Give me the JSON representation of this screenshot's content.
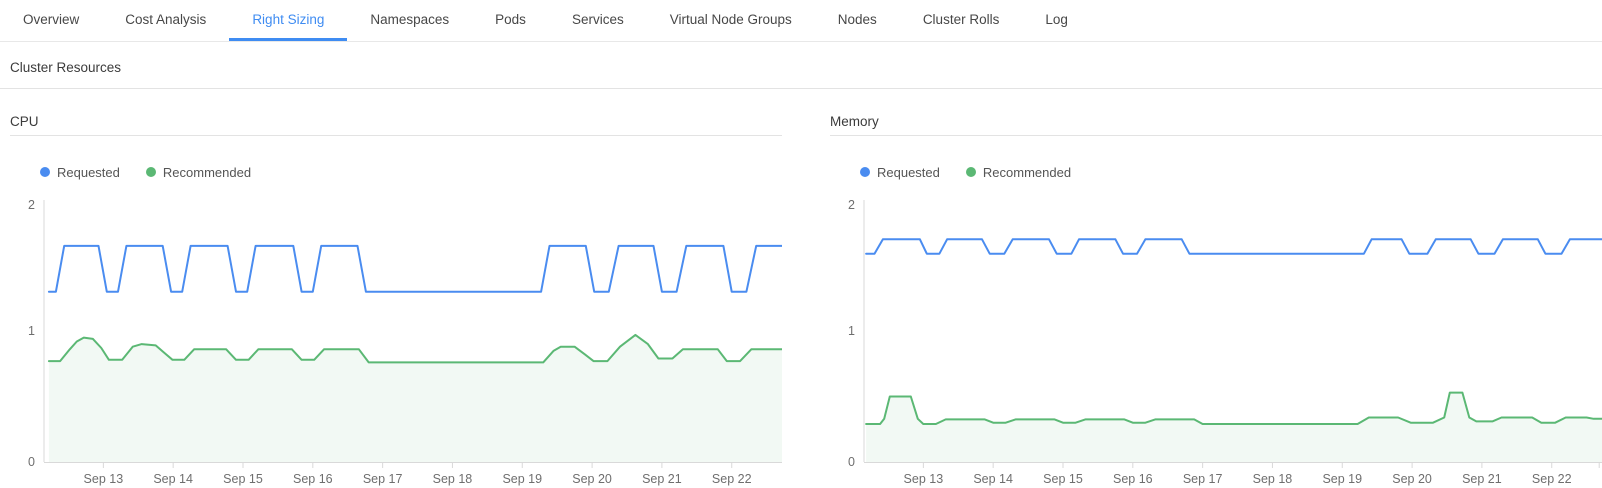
{
  "colors": {
    "accent": "#3f8cf2",
    "requested_blue": "#4a8cf0",
    "recommended_green": "#5bb874",
    "recommended_fill": "rgba(91,184,116,0.08)",
    "axis": "#d9d9d9",
    "tick_text": "#6e6e6e"
  },
  "tabs": {
    "items": [
      {
        "label": "Overview",
        "active": false
      },
      {
        "label": "Cost Analysis",
        "active": false
      },
      {
        "label": "Right Sizing",
        "active": true
      },
      {
        "label": "Namespaces",
        "active": false
      },
      {
        "label": "Pods",
        "active": false
      },
      {
        "label": "Services",
        "active": false
      },
      {
        "label": "Virtual Node Groups",
        "active": false
      },
      {
        "label": "Nodes",
        "active": false
      },
      {
        "label": "Cluster Rolls",
        "active": false
      },
      {
        "label": "Log",
        "active": false
      }
    ]
  },
  "section": {
    "title": "Cluster Resources"
  },
  "chart_data": [
    {
      "type": "line",
      "title": "CPU",
      "xlim": [
        12.15,
        22.72
      ],
      "ylim": [
        0,
        2
      ],
      "grid": false,
      "legend_position": "top-left",
      "y_ticks": [
        {
          "value": 2,
          "label": "2"
        },
        {
          "value": 1,
          "label": "1"
        },
        {
          "value": 0,
          "label": "0"
        }
      ],
      "x_ticks": [
        {
          "day": 13,
          "label": "Sep 13"
        },
        {
          "day": 14,
          "label": "Sep 14"
        },
        {
          "day": 15,
          "label": "Sep 15"
        },
        {
          "day": 16,
          "label": "Sep 16"
        },
        {
          "day": 17,
          "label": "Sep 17"
        },
        {
          "day": 18,
          "label": "Sep 18"
        },
        {
          "day": 19,
          "label": "Sep 19"
        },
        {
          "day": 20,
          "label": "Sep 20"
        },
        {
          "day": 21,
          "label": "Sep 21"
        },
        {
          "day": 22,
          "label": "Sep 22"
        }
      ],
      "series": [
        {
          "name": "Requested",
          "color": "#4a8cf0",
          "fill": false,
          "points": [
            [
              12.22,
              1.3
            ],
            [
              12.32,
              1.3
            ],
            [
              12.44,
              1.65
            ],
            [
              12.93,
              1.65
            ],
            [
              13.05,
              1.3
            ],
            [
              13.21,
              1.3
            ],
            [
              13.33,
              1.65
            ],
            [
              13.85,
              1.65
            ],
            [
              13.97,
              1.3
            ],
            [
              14.13,
              1.3
            ],
            [
              14.25,
              1.65
            ],
            [
              14.78,
              1.65
            ],
            [
              14.9,
              1.3
            ],
            [
              15.06,
              1.3
            ],
            [
              15.18,
              1.65
            ],
            [
              15.72,
              1.65
            ],
            [
              15.84,
              1.3
            ],
            [
              16.0,
              1.3
            ],
            [
              16.12,
              1.65
            ],
            [
              16.64,
              1.65
            ],
            [
              16.76,
              1.3
            ],
            [
              19.27,
              1.3
            ],
            [
              19.39,
              1.65
            ],
            [
              19.91,
              1.65
            ],
            [
              20.03,
              1.3
            ],
            [
              20.24,
              1.3
            ],
            [
              20.38,
              1.65
            ],
            [
              20.88,
              1.65
            ],
            [
              21.0,
              1.3
            ],
            [
              21.21,
              1.3
            ],
            [
              21.35,
              1.65
            ],
            [
              21.88,
              1.65
            ],
            [
              22.0,
              1.3
            ],
            [
              22.21,
              1.3
            ],
            [
              22.35,
              1.65
            ],
            [
              22.72,
              1.65
            ]
          ]
        },
        {
          "name": "Recommended",
          "color": "#5bb874",
          "fill": true,
          "fill_color": "rgba(91,184,116,0.08)",
          "points": [
            [
              12.22,
              0.77
            ],
            [
              12.38,
              0.77
            ],
            [
              12.52,
              0.86
            ],
            [
              12.62,
              0.92
            ],
            [
              12.72,
              0.95
            ],
            [
              12.85,
              0.94
            ],
            [
              12.97,
              0.87
            ],
            [
              13.08,
              0.78
            ],
            [
              13.27,
              0.78
            ],
            [
              13.42,
              0.88
            ],
            [
              13.55,
              0.9
            ],
            [
              13.75,
              0.89
            ],
            [
              13.88,
              0.83
            ],
            [
              13.99,
              0.78
            ],
            [
              14.16,
              0.78
            ],
            [
              14.3,
              0.86
            ],
            [
              14.76,
              0.86
            ],
            [
              14.9,
              0.78
            ],
            [
              15.08,
              0.78
            ],
            [
              15.22,
              0.86
            ],
            [
              15.7,
              0.86
            ],
            [
              15.84,
              0.78
            ],
            [
              16.02,
              0.78
            ],
            [
              16.16,
              0.86
            ],
            [
              16.66,
              0.86
            ],
            [
              16.8,
              0.76
            ],
            [
              19.3,
              0.76
            ],
            [
              19.45,
              0.85
            ],
            [
              19.55,
              0.88
            ],
            [
              19.75,
              0.88
            ],
            [
              19.9,
              0.82
            ],
            [
              20.02,
              0.77
            ],
            [
              20.22,
              0.77
            ],
            [
              20.4,
              0.88
            ],
            [
              20.62,
              0.97
            ],
            [
              20.8,
              0.9
            ],
            [
              20.95,
              0.79
            ],
            [
              21.15,
              0.79
            ],
            [
              21.3,
              0.86
            ],
            [
              21.8,
              0.86
            ],
            [
              21.93,
              0.77
            ],
            [
              22.12,
              0.77
            ],
            [
              22.28,
              0.86
            ],
            [
              22.72,
              0.86
            ]
          ]
        }
      ]
    },
    {
      "type": "line",
      "title": "Memory",
      "xlim": [
        12.15,
        22.72
      ],
      "ylim": [
        0,
        2
      ],
      "grid": false,
      "legend_position": "top-left",
      "y_ticks": [
        {
          "value": 2,
          "label": "2"
        },
        {
          "value": 1,
          "label": "1"
        },
        {
          "value": 0,
          "label": "0"
        }
      ],
      "x_ticks": [
        {
          "day": 13,
          "label": "Sep 13"
        },
        {
          "day": 14,
          "label": "Sep 14"
        },
        {
          "day": 15,
          "label": "Sep 15"
        },
        {
          "day": 16,
          "label": "Sep 16"
        },
        {
          "day": 17,
          "label": "Sep 17"
        },
        {
          "day": 18,
          "label": "Sep 18"
        },
        {
          "day": 19,
          "label": "Sep 19"
        },
        {
          "day": 20,
          "label": "Sep 20"
        },
        {
          "day": 21,
          "label": "Sep 21"
        },
        {
          "day": 22,
          "label": "Sep 22"
        },
        {
          "day": 22.68,
          "label": ""
        }
      ],
      "series": [
        {
          "name": "Requested",
          "color": "#4a8cf0",
          "fill": false,
          "points": [
            [
              12.18,
              1.59
            ],
            [
              12.3,
              1.59
            ],
            [
              12.42,
              1.7
            ],
            [
              12.95,
              1.7
            ],
            [
              13.05,
              1.59
            ],
            [
              13.23,
              1.59
            ],
            [
              13.34,
              1.7
            ],
            [
              13.84,
              1.7
            ],
            [
              13.95,
              1.59
            ],
            [
              14.16,
              1.59
            ],
            [
              14.28,
              1.7
            ],
            [
              14.8,
              1.7
            ],
            [
              14.91,
              1.59
            ],
            [
              15.12,
              1.59
            ],
            [
              15.23,
              1.7
            ],
            [
              15.75,
              1.7
            ],
            [
              15.86,
              1.59
            ],
            [
              16.06,
              1.59
            ],
            [
              16.18,
              1.7
            ],
            [
              16.7,
              1.7
            ],
            [
              16.81,
              1.59
            ],
            [
              19.31,
              1.59
            ],
            [
              19.42,
              1.7
            ],
            [
              19.85,
              1.7
            ],
            [
              19.96,
              1.59
            ],
            [
              20.22,
              1.59
            ],
            [
              20.34,
              1.7
            ],
            [
              20.84,
              1.7
            ],
            [
              20.95,
              1.59
            ],
            [
              21.18,
              1.59
            ],
            [
              21.3,
              1.7
            ],
            [
              21.8,
              1.7
            ],
            [
              21.91,
              1.59
            ],
            [
              22.14,
              1.59
            ],
            [
              22.26,
              1.7
            ],
            [
              22.72,
              1.7
            ]
          ]
        },
        {
          "name": "Recommended",
          "color": "#5bb874",
          "fill": true,
          "fill_color": "rgba(91,184,116,0.08)",
          "points": [
            [
              12.18,
              0.29
            ],
            [
              12.38,
              0.29
            ],
            [
              12.44,
              0.33
            ],
            [
              12.52,
              0.5
            ],
            [
              12.82,
              0.5
            ],
            [
              12.92,
              0.33
            ],
            [
              13.0,
              0.29
            ],
            [
              13.18,
              0.29
            ],
            [
              13.32,
              0.325
            ],
            [
              13.88,
              0.325
            ],
            [
              14.0,
              0.3
            ],
            [
              14.18,
              0.3
            ],
            [
              14.32,
              0.325
            ],
            [
              14.88,
              0.325
            ],
            [
              15.0,
              0.3
            ],
            [
              15.18,
              0.3
            ],
            [
              15.32,
              0.325
            ],
            [
              15.88,
              0.325
            ],
            [
              16.0,
              0.3
            ],
            [
              16.18,
              0.3
            ],
            [
              16.32,
              0.325
            ],
            [
              16.88,
              0.325
            ],
            [
              17.0,
              0.29
            ],
            [
              19.22,
              0.29
            ],
            [
              19.38,
              0.34
            ],
            [
              19.8,
              0.34
            ],
            [
              19.98,
              0.3
            ],
            [
              20.3,
              0.3
            ],
            [
              20.46,
              0.34
            ],
            [
              20.54,
              0.53
            ],
            [
              20.72,
              0.53
            ],
            [
              20.82,
              0.34
            ],
            [
              20.92,
              0.31
            ],
            [
              21.15,
              0.31
            ],
            [
              21.28,
              0.34
            ],
            [
              21.72,
              0.34
            ],
            [
              21.85,
              0.3
            ],
            [
              22.05,
              0.3
            ],
            [
              22.2,
              0.34
            ],
            [
              22.5,
              0.34
            ],
            [
              22.6,
              0.33
            ],
            [
              22.72,
              0.33
            ]
          ]
        }
      ]
    }
  ]
}
